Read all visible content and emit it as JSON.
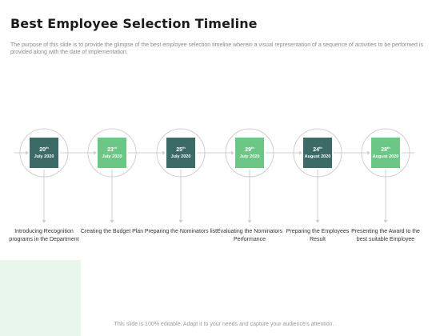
{
  "title": "Best Employee Selection Timeline",
  "subtitle": "The purpose of this slide is to provide the glimpse of the best employee selection timeline wherein a visual representation of a sequence of activities to be performed is provided along with the date of implementation.",
  "steps": [
    {
      "day": "20",
      "suffix": "th",
      "month": "July 2020",
      "label": "Introducing Recognition programs in the Department",
      "tone": "dark"
    },
    {
      "day": "23",
      "suffix": "rd",
      "month": "July 2020",
      "label": "Creating the Budget Plan",
      "tone": "light"
    },
    {
      "day": "25",
      "suffix": "th",
      "month": "July 2020",
      "label": "Preparing the Nominators list",
      "tone": "dark"
    },
    {
      "day": "29",
      "suffix": "th",
      "month": "July 2020",
      "label": "Evaluating the Nominators Performance",
      "tone": "light"
    },
    {
      "day": "24",
      "suffix": "th",
      "month": "August 2020",
      "label": "Preparing the Employees Result",
      "tone": "dark"
    },
    {
      "day": "28",
      "suffix": "th",
      "month": "August 2020",
      "label": "Presenting the Award to the best suitable Employee",
      "tone": "light"
    }
  ],
  "footer": "This slide is 100% editable. Adapt it to your needs and capture your audience's attention.",
  "colors": {
    "dark": "#3c6a66",
    "light": "#6cc787",
    "line": "#cfcfcf",
    "corner": "#e9f6ec"
  }
}
